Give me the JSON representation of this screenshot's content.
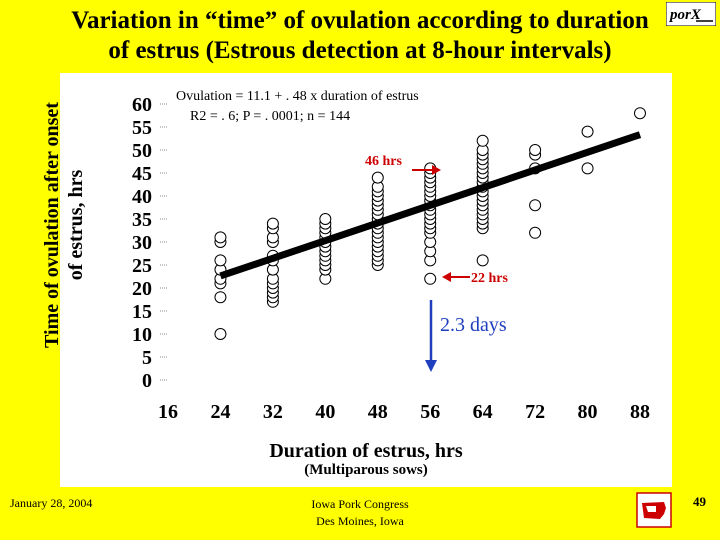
{
  "title_line1": "Variation in “time” of ovulation according to duration",
  "title_line2": "of estrus (Estrous detection at 8-hour intervals)",
  "logo_text": "porX",
  "footer": {
    "date": "January 28, 2004",
    "line1": "Iowa Pork Congress",
    "line2": "Des Moines, Iowa",
    "page": "49"
  },
  "chart_data": {
    "type": "scatter",
    "ylabel_line1": "Time of ovulation after onset",
    "ylabel_line2": "of estrus, hrs",
    "xlabel": "Duration of estrus, hrs",
    "xsub": "(Multiparous sows)",
    "xlim": [
      16,
      88
    ],
    "ylim": [
      0,
      60
    ],
    "xticks": [
      "16",
      "24",
      "32",
      "40",
      "48",
      "56",
      "64",
      "72",
      "80",
      "88"
    ],
    "yticks": [
      "0",
      "5",
      "10",
      "15",
      "20",
      "25",
      "30",
      "35",
      "40",
      "45",
      "50",
      "55",
      "60"
    ],
    "regression": {
      "equation": "Ovulation = 11.1 + . 48 x duration of estrus",
      "stats": "R2 = . 6; P = . 0001; n = 144",
      "intercept": 11.1,
      "slope": 0.48,
      "x_range": [
        24,
        88
      ]
    },
    "annotations": {
      "upper": "46 hrs",
      "lower": "22 hrs",
      "range": "2.3 days",
      "color": "#cc0000",
      "range_color": "#1f3fbf"
    },
    "series": [
      {
        "name": "Sows",
        "points": [
          [
            24,
            10
          ],
          [
            24,
            18
          ],
          [
            24,
            21
          ],
          [
            24,
            22
          ],
          [
            24,
            24
          ],
          [
            24,
            26
          ],
          [
            24,
            30
          ],
          [
            24,
            31
          ],
          [
            32,
            17
          ],
          [
            32,
            18
          ],
          [
            32,
            19
          ],
          [
            32,
            20
          ],
          [
            32,
            21
          ],
          [
            32,
            22
          ],
          [
            32,
            24
          ],
          [
            32,
            26
          ],
          [
            32,
            27
          ],
          [
            32,
            30
          ],
          [
            32,
            31
          ],
          [
            32,
            33
          ],
          [
            32,
            34
          ],
          [
            40,
            22
          ],
          [
            40,
            24
          ],
          [
            40,
            25
          ],
          [
            40,
            26
          ],
          [
            40,
            27
          ],
          [
            40,
            28
          ],
          [
            40,
            29
          ],
          [
            40,
            30
          ],
          [
            40,
            31
          ],
          [
            40,
            32
          ],
          [
            40,
            33
          ],
          [
            40,
            34
          ],
          [
            40,
            35
          ],
          [
            48,
            25
          ],
          [
            48,
            26
          ],
          [
            48,
            27
          ],
          [
            48,
            28
          ],
          [
            48,
            29
          ],
          [
            48,
            30
          ],
          [
            48,
            31
          ],
          [
            48,
            32
          ],
          [
            48,
            33
          ],
          [
            48,
            34
          ],
          [
            48,
            35
          ],
          [
            48,
            36
          ],
          [
            48,
            37
          ],
          [
            48,
            38
          ],
          [
            48,
            39
          ],
          [
            48,
            40
          ],
          [
            48,
            41
          ],
          [
            48,
            42
          ],
          [
            48,
            44
          ],
          [
            56,
            22
          ],
          [
            56,
            26
          ],
          [
            56,
            28
          ],
          [
            56,
            30
          ],
          [
            56,
            32
          ],
          [
            56,
            33
          ],
          [
            56,
            34
          ],
          [
            56,
            35
          ],
          [
            56,
            36
          ],
          [
            56,
            37
          ],
          [
            56,
            38
          ],
          [
            56,
            39
          ],
          [
            56,
            40
          ],
          [
            56,
            41
          ],
          [
            56,
            42
          ],
          [
            56,
            43
          ],
          [
            56,
            44
          ],
          [
            56,
            45
          ],
          [
            56,
            46
          ],
          [
            64,
            26
          ],
          [
            64,
            33
          ],
          [
            64,
            34
          ],
          [
            64,
            35
          ],
          [
            64,
            36
          ],
          [
            64,
            37
          ],
          [
            64,
            38
          ],
          [
            64,
            39
          ],
          [
            64,
            40
          ],
          [
            64,
            41
          ],
          [
            64,
            42
          ],
          [
            64,
            43
          ],
          [
            64,
            44
          ],
          [
            64,
            45
          ],
          [
            64,
            46
          ],
          [
            64,
            47
          ],
          [
            64,
            48
          ],
          [
            64,
            49
          ],
          [
            64,
            50
          ],
          [
            64,
            52
          ],
          [
            72,
            32
          ],
          [
            72,
            38
          ],
          [
            72,
            46
          ],
          [
            72,
            49
          ],
          [
            72,
            50
          ],
          [
            80,
            46
          ],
          [
            80,
            54
          ],
          [
            88,
            58
          ]
        ]
      }
    ]
  }
}
